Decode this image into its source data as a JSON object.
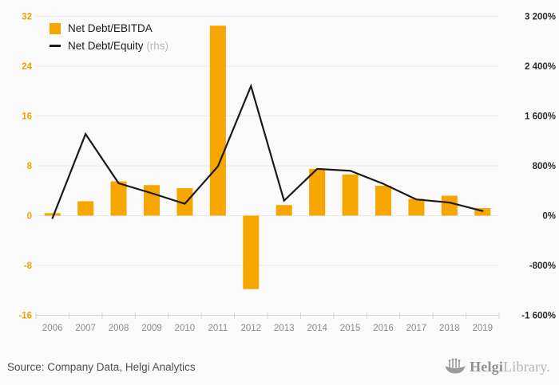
{
  "legend": {
    "items": [
      {
        "label": "Net Debt/EBITDA",
        "swatch": "bar-swatch"
      },
      {
        "label": "Net Debt/Equity",
        "suffix": "(rhs)",
        "swatch": "line-swatch"
      }
    ]
  },
  "chart_data": {
    "type": "bar+line combo",
    "categories": [
      "2006",
      "2007",
      "2008",
      "2009",
      "2010",
      "2011",
      "2012",
      "2013",
      "2014",
      "2015",
      "2016",
      "2017",
      "2018",
      "2019"
    ],
    "series": [
      {
        "name": "Net Debt/EBITDA",
        "type": "bar",
        "axis": "left",
        "values": [
          0.4,
          2.3,
          5.5,
          4.9,
          4.4,
          30.5,
          -11.8,
          1.7,
          7.5,
          6.6,
          4.8,
          2.7,
          3.2,
          1.2
        ]
      },
      {
        "name": "Net Debt/Equity (rhs)",
        "type": "line",
        "axis": "right",
        "values_pct": [
          -40,
          1310,
          520,
          360,
          190,
          790,
          2080,
          240,
          750,
          720,
          510,
          260,
          210,
          75
        ]
      }
    ],
    "left_axis": {
      "tick_values": [
        32,
        24,
        16,
        8,
        0,
        -8,
        -16
      ],
      "tick_labels": [
        "32",
        "24",
        "16",
        "8",
        "0",
        "-8",
        "-16"
      ],
      "range": [
        -16,
        32
      ]
    },
    "right_axis": {
      "tick_values": [
        3200,
        2400,
        1600,
        800,
        0,
        -800,
        -1600
      ],
      "tick_labels": [
        "3 200%",
        "2 400%",
        "1 600%",
        "800%",
        "0%",
        "-800%",
        "-1 600%"
      ],
      "range": [
        -1600,
        3200
      ]
    },
    "grid": true,
    "legend_position": "top-left",
    "title": ""
  },
  "colors": {
    "bar": "#F7A600",
    "line": "#1a1a1a",
    "grid": "#e9e9eb",
    "axis": "#ccd4e0",
    "left_tick_label": "#F0A000",
    "right_tick_label": "#2b2b2b",
    "year_label": "#8a8a8a",
    "background": "#fafafa"
  },
  "footer": {
    "source": "Source: Company Data, Helgi Analytics",
    "logo_bold": "Helgi",
    "logo_light": "Library."
  }
}
